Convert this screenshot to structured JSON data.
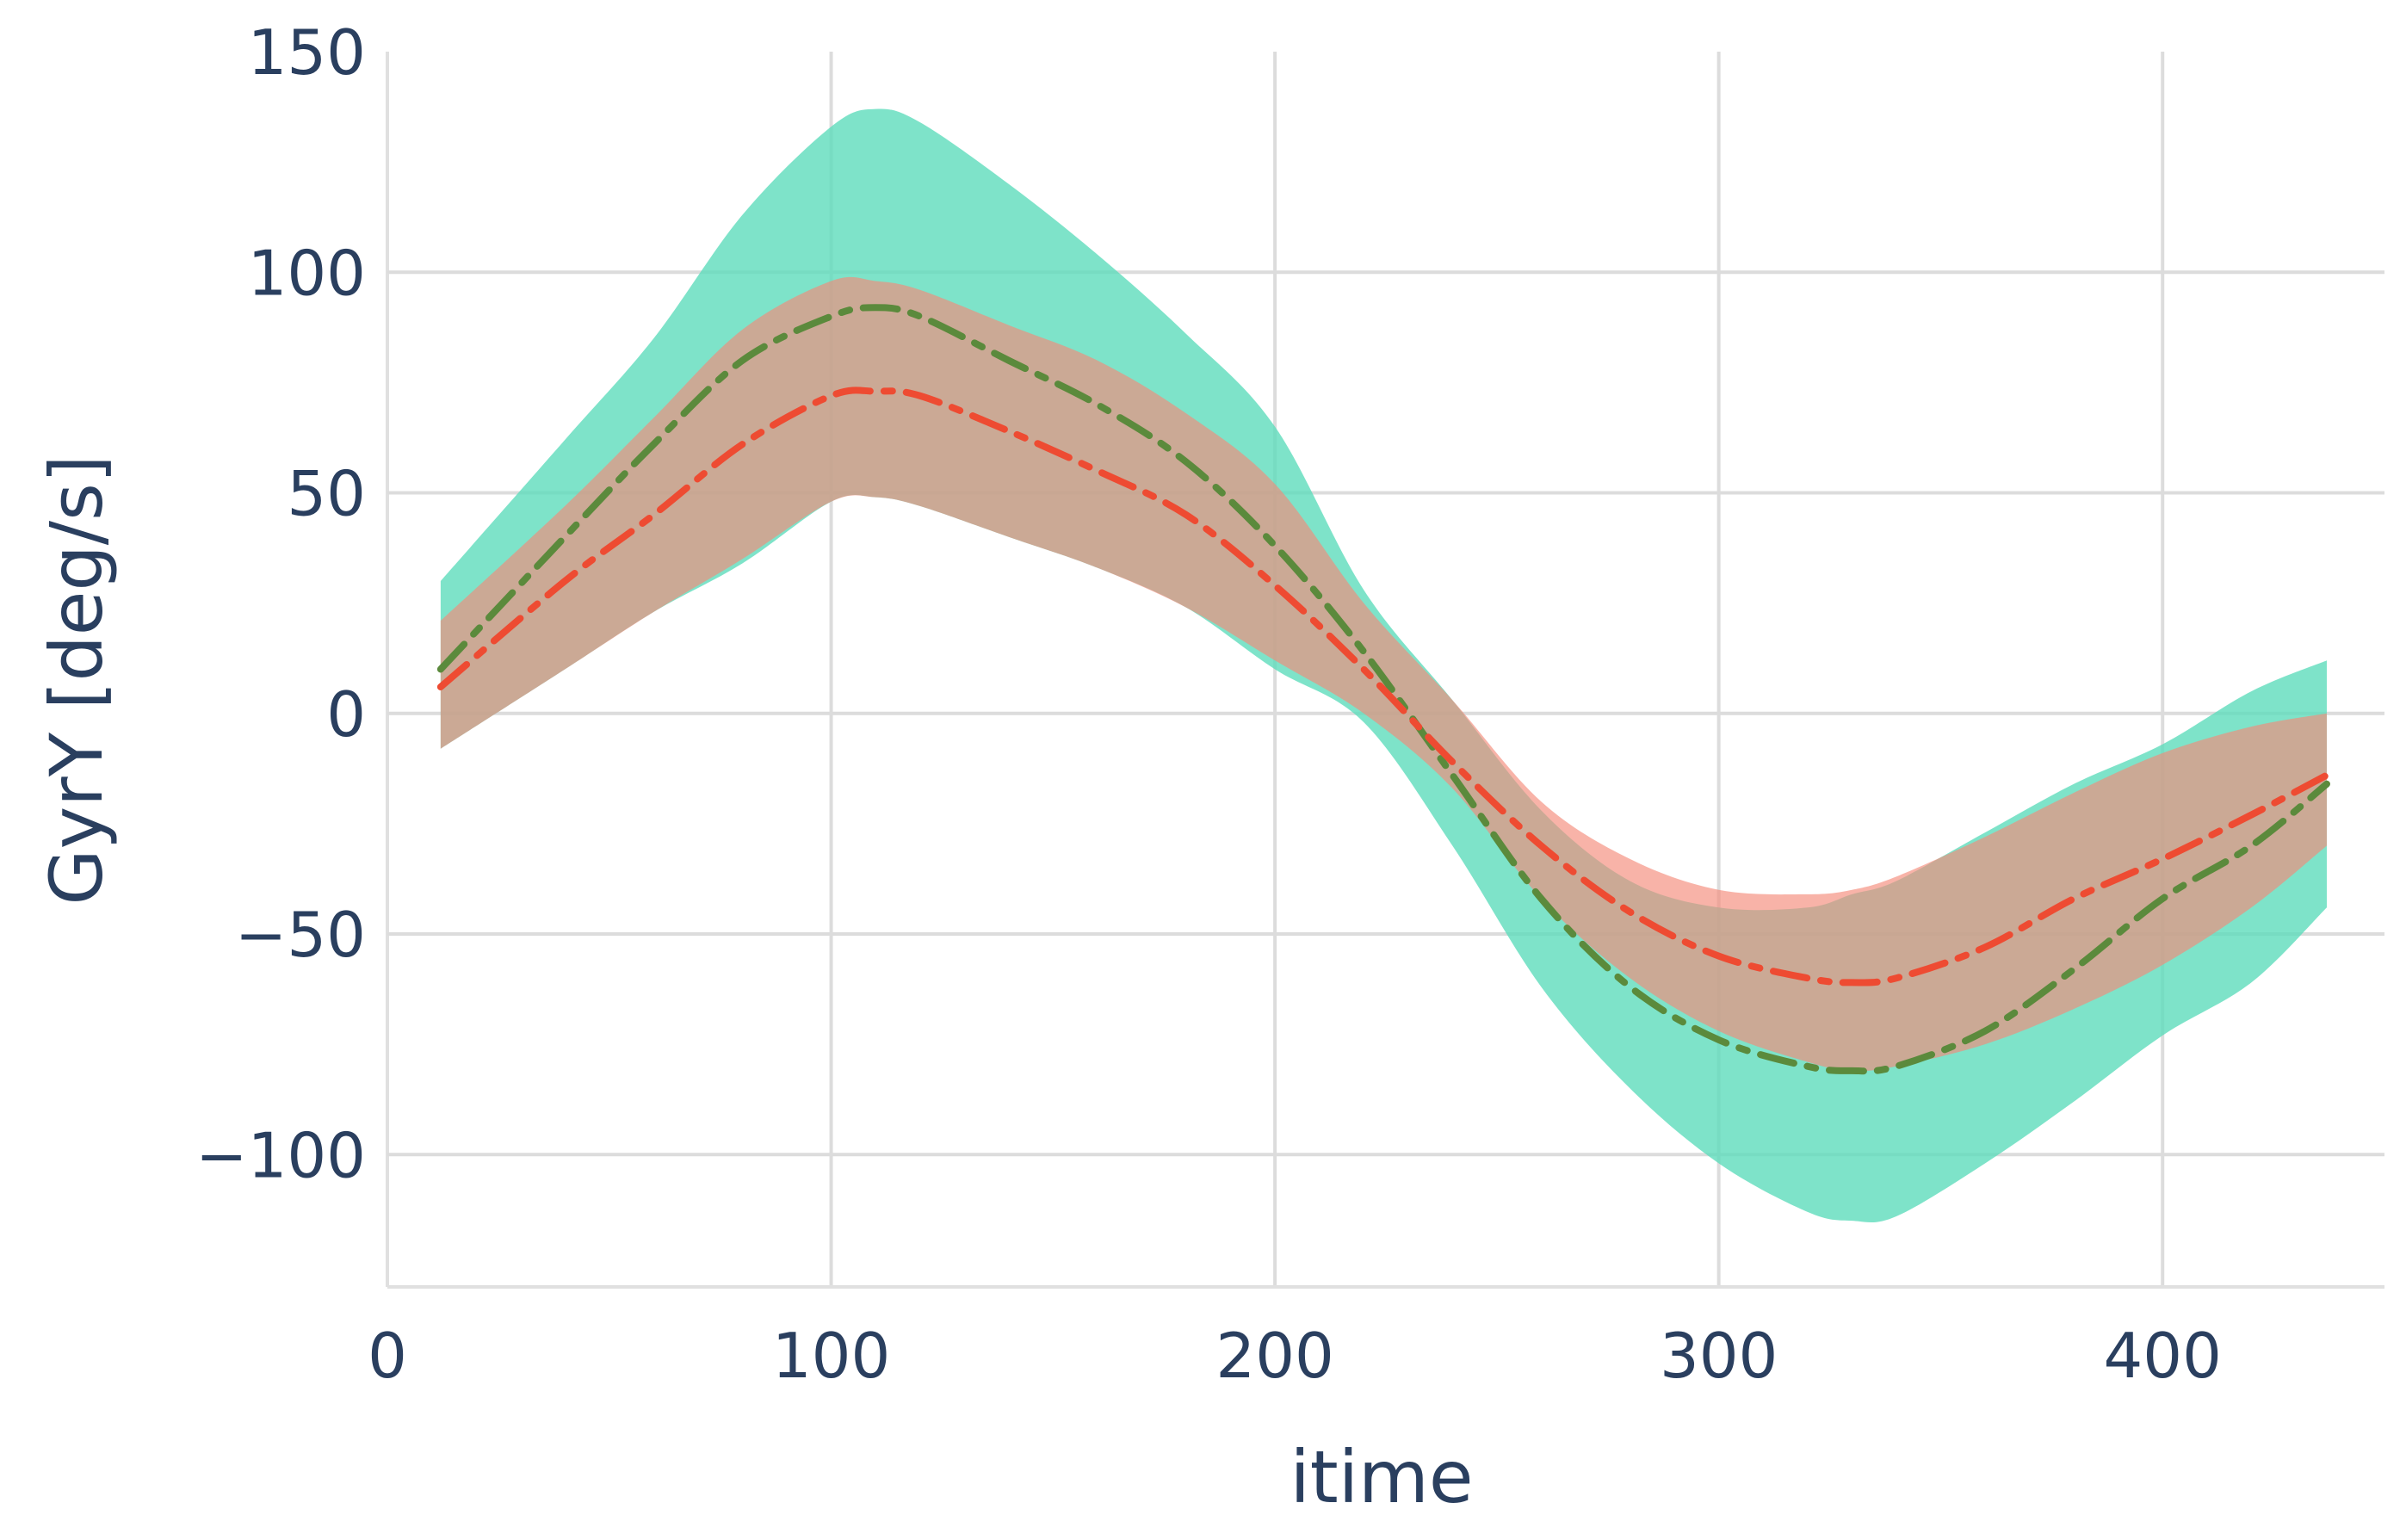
{
  "chart_data": {
    "type": "area",
    "xlabel": "itime",
    "ylabel": "GyrY [deg/s]",
    "xlim": [
      0,
      450
    ],
    "ylim": [
      -130,
      150
    ],
    "x_ticks": [
      0,
      100,
      200,
      300,
      400
    ],
    "x_tick_labels": [
      "0",
      "100",
      "200",
      "300",
      "400"
    ],
    "y_ticks": [
      -100,
      -50,
      0,
      50,
      100,
      150
    ],
    "y_tick_labels": [
      "−100",
      "−50",
      "0",
      "50",
      "100",
      "150"
    ],
    "grid": true,
    "legend": false,
    "x": [
      12,
      40,
      60,
      80,
      100,
      110,
      120,
      140,
      160,
      180,
      200,
      220,
      240,
      260,
      280,
      300,
      320,
      330,
      340,
      360,
      380,
      400,
      420,
      437
    ],
    "bands": [
      {
        "color": "#5edcbc",
        "opacity": 0.8,
        "upper": [
          30,
          62,
          85,
          113,
          133,
          137,
          134,
          120,
          104,
          86,
          65,
          28,
          3,
          -22,
          -38,
          -44,
          -44,
          -41,
          -38,
          -27,
          -16,
          -7,
          5,
          12
        ],
        "lower": [
          -8,
          10,
          23,
          34,
          48,
          49,
          47,
          40,
          33,
          24,
          10,
          -2,
          -30,
          -62,
          -85,
          -102,
          -113,
          -115,
          -114,
          -102,
          -88,
          -73,
          -61,
          -44
        ]
      },
      {
        "color": "#f48a7a",
        "opacity": 0.65,
        "upper": [
          21,
          47,
          67,
          87,
          98,
          98,
          96,
          88,
          80,
          68,
          52,
          25,
          3,
          -20,
          -33,
          -40,
          -41,
          -40,
          -37,
          -28,
          -18,
          -9,
          -3,
          0
        ],
        "lower": [
          -8,
          10,
          23,
          35,
          48,
          49,
          47,
          40,
          33,
          24,
          12,
          0,
          -17,
          -42,
          -60,
          -72,
          -79,
          -81,
          -80,
          -75,
          -67,
          -57,
          -44,
          -30
        ]
      }
    ],
    "series": [
      {
        "color": "#5b8a3c",
        "dash": "dashdot",
        "values": [
          10,
          40,
          61,
          80,
          90,
          92,
          90,
          80,
          70,
          57,
          38,
          14,
          -14,
          -42,
          -62,
          -74,
          -80,
          -81,
          -80,
          -72,
          -58,
          -42,
          -30,
          -16
        ]
      },
      {
        "color": "#ee4b32",
        "dash": "dashdot",
        "values": [
          6,
          30,
          45,
          61,
          72,
          73,
          72,
          64,
          55,
          45,
          29,
          10,
          -11,
          -30,
          -45,
          -55,
          -60,
          -61,
          -60,
          -53,
          -42,
          -33,
          -23,
          -14
        ]
      }
    ]
  }
}
